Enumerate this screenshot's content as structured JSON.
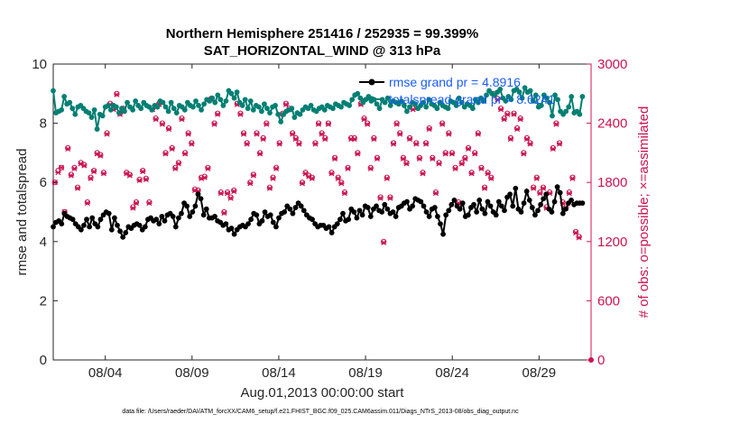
{
  "chart_data": {
    "type": "line",
    "title": "Northern Hemisphere 251416 / 252935 = 99.399%",
    "subtitle": "SAT_HORIZONTAL_WIND @ 313 hPa",
    "xlabel": "Aug.01,2013 00:00:00 start",
    "ylabel": "rmse and totalspread",
    "ylabel_right": "# of obs: o=possible; ×=assimilated",
    "x_tick_labels": [
      "08/04",
      "08/09",
      "08/14",
      "08/19",
      "08/24",
      "08/29"
    ],
    "x_tick_days": [
      4,
      9,
      14,
      19,
      24,
      29
    ],
    "xlim": [
      1,
      32
    ],
    "ylim": [
      0,
      10
    ],
    "yticks": [
      "0",
      "2",
      "4",
      "6",
      "8",
      "10"
    ],
    "ylim_right": [
      0,
      3000
    ],
    "yticks_right": [
      "0",
      "600",
      "1200",
      "1800",
      "2400",
      "3000"
    ],
    "grid": false,
    "legend_position": "top-right",
    "series": [
      {
        "name": "rmse grand pr = 4.8916",
        "color": "#000000",
        "axis": "left",
        "marker": "circle",
        "values": [
          4.5,
          4.65,
          4.7,
          4.6,
          4.95,
          4.85,
          4.8,
          4.75,
          4.6,
          4.5,
          4.4,
          4.55,
          4.75,
          4.5,
          4.8,
          4.6,
          4.5,
          4.75,
          4.9,
          5.0,
          4.95,
          4.4,
          4.8,
          4.55,
          4.35,
          4.15,
          4.3,
          4.5,
          4.45,
          4.55,
          4.6,
          4.55,
          4.4,
          4.5,
          4.75,
          4.8,
          4.7,
          4.75,
          4.6,
          4.85,
          4.7,
          4.9,
          4.95,
          4.85,
          4.5,
          4.8,
          4.95,
          5.3,
          5.2,
          4.85,
          5.0,
          5.2,
          5.6,
          5.45,
          4.9,
          5.1,
          4.8,
          4.8,
          4.85,
          4.7,
          4.65,
          4.55,
          4.6,
          4.4,
          4.45,
          4.25,
          4.4,
          4.5,
          4.55,
          4.5,
          4.6,
          4.75,
          4.95,
          4.9,
          4.6,
          4.7,
          5.0,
          4.85,
          4.9,
          4.65,
          4.5,
          4.8,
          4.95,
          5.0,
          5.2,
          5.1,
          4.95,
          5.15,
          5.3,
          5.2,
          5.05,
          4.9,
          4.8,
          4.75,
          4.6,
          4.5,
          4.55,
          4.55,
          4.45,
          4.5,
          4.3,
          4.5,
          4.6,
          4.75,
          4.95,
          4.7,
          4.75,
          5.1,
          5.0,
          4.8,
          5.05,
          4.9,
          5.2,
          5.15,
          4.85,
          5.1,
          5.2,
          5.05,
          5.0,
          5.25,
          5.1,
          4.95,
          5.0,
          4.85,
          5.15,
          5.2,
          5.3,
          5.35,
          5.1,
          5.2,
          5.45,
          5.4,
          5.35,
          5.2,
          5.0,
          4.85,
          5.1,
          5.15,
          4.85,
          4.6,
          4.25,
          4.9,
          5.05,
          5.25,
          5.4,
          5.2,
          5.1,
          5.3,
          4.85,
          4.9,
          5.15,
          5.25,
          5.0,
          5.4,
          5.1,
          4.95,
          5.35,
          5.2,
          5.0,
          4.9,
          5.35,
          5.2,
          5.05,
          5.5,
          5.6,
          5.2,
          5.8,
          5.1,
          5.0,
          5.3,
          5.7,
          5.4,
          5.15,
          4.9,
          5.05,
          5.25,
          5.45,
          5.6,
          5.1,
          5.0,
          5.35,
          5.85,
          5.65,
          4.95,
          5.1,
          5.3,
          5.4,
          5.25,
          5.3,
          5.3,
          5.3
        ]
      },
      {
        "name": "totalspread grand pr = 8.6241",
        "color": "#007f73",
        "axis": "left",
        "marker": "circle",
        "values": [
          9.1,
          8.35,
          8.4,
          8.45,
          8.9,
          8.65,
          8.7,
          8.5,
          8.3,
          8.55,
          8.6,
          8.5,
          8.4,
          8.35,
          8.2,
          8.45,
          7.8,
          8.3,
          8.25,
          8.55,
          8.6,
          8.45,
          8.6,
          8.55,
          8.35,
          8.5,
          8.4,
          8.7,
          8.55,
          8.45,
          8.75,
          8.6,
          8.5,
          8.7,
          8.6,
          8.55,
          8.45,
          8.6,
          8.55,
          8.75,
          8.7,
          8.55,
          8.4,
          8.7,
          8.5,
          8.35,
          8.6,
          8.55,
          8.45,
          8.7,
          8.6,
          8.55,
          8.75,
          8.6,
          8.45,
          8.65,
          8.8,
          8.75,
          8.85,
          8.7,
          8.95,
          8.8,
          8.6,
          8.75,
          9.1,
          9.0,
          8.85,
          9.05,
          8.7,
          8.6,
          8.8,
          8.5,
          8.75,
          8.45,
          8.6,
          8.55,
          8.4,
          8.65,
          8.5,
          8.35,
          8.55,
          8.6,
          8.3,
          8.05,
          8.3,
          8.4,
          8.45,
          8.5,
          8.2,
          8.35,
          8.3,
          8.45,
          8.55,
          8.5,
          8.6,
          8.45,
          8.4,
          8.5,
          8.55,
          8.45,
          8.6,
          8.55,
          8.5,
          8.65,
          8.6,
          8.55,
          8.7,
          8.65,
          8.6,
          8.8,
          8.95,
          9.0,
          8.85,
          8.7,
          8.8,
          8.9,
          8.75,
          8.8,
          8.65,
          8.5,
          8.8,
          8.7,
          8.85,
          8.6,
          8.75,
          8.7,
          8.65,
          8.75,
          8.6,
          8.4,
          8.55,
          8.7,
          8.65,
          8.5,
          8.6,
          8.7,
          8.55,
          8.8,
          8.65,
          8.6,
          8.5,
          8.7,
          8.6,
          8.55,
          8.5,
          8.75,
          8.7,
          8.6,
          8.85,
          8.7,
          8.55,
          8.65,
          8.6,
          8.5,
          8.8,
          8.7,
          8.85,
          8.75,
          8.95,
          9.1,
          9.0,
          8.95,
          9.05,
          9.15,
          8.85,
          8.75,
          8.9,
          8.8,
          9.1,
          9.15,
          9.05,
          8.85,
          9.2,
          9.05,
          9.1,
          8.75,
          8.95,
          8.55,
          8.6,
          8.95,
          8.85,
          8.7,
          8.25,
          8.95,
          8.8,
          8.4,
          8.3,
          8.4,
          8.55,
          8.9,
          8.35,
          8.4,
          8.3,
          8.9
        ]
      },
      {
        "name": "possible",
        "color": "#cc1450",
        "axis": "right",
        "marker": "o",
        "values": [
          1800,
          1920,
          1950,
          1500,
          2150,
          1880,
          1950,
          1750,
          2000,
          1980,
          1600,
          1850,
          1920,
          2100,
          2080,
          1900,
          2300,
          2600,
          2550,
          2700,
          2500,
          2550,
          1900,
          1880,
          1550,
          1600,
          1830,
          1920,
          1840,
          1600,
          2550,
          2450,
          2600,
          2400,
          2100,
          2350,
          2150,
          1950,
          2000,
          2450,
          2100,
          2300,
          2200,
          1730,
          1720,
          1850,
          1860,
          1950,
          2650,
          2400,
          2500,
          1700,
          1500,
          1700,
          1650,
          1720,
          2600,
          2500,
          2300,
          2200,
          1800,
          1880,
          2300,
          2100,
          2250,
          2400,
          1750,
          1850,
          1950,
          2200,
          2500,
          2600,
          2550,
          2300,
          2250,
          2200,
          1800,
          1900,
          1870,
          1850,
          2200,
          2400,
          2300,
          2250,
          2400,
          1900,
          2050,
          1850,
          1800,
          1700,
          1950,
          2250,
          2250,
          2100,
          2600,
          2450,
          2400,
          1950,
          2250,
          2050,
          1650,
          1200,
          1850,
          1650,
          2200,
          2400,
          2300,
          2050,
          2000,
          2250,
          2550,
          2200,
          2050,
          1900,
          2200,
          2350,
          2050,
          1700,
          2000,
          2400,
          2100,
          2300,
          2100,
          1950,
          1600,
          2000,
          2050,
          2150,
          1900,
          2100,
          2300,
          1950,
          1750,
          1900,
          1850,
          2700,
          2650,
          2550,
          2450,
          2500,
          2250,
          2500,
          2350,
          2450,
          2100,
          2250,
          2200,
          1750,
          1850,
          1700,
          1750,
          1550,
          1700,
          2150,
          2400,
          2200,
          1600,
          1550,
          1700,
          1850,
          1300,
          1250
        ]
      },
      {
        "name": "assimilated",
        "color": "#cc1450",
        "axis": "right",
        "marker": "x",
        "values": [
          1800,
          1900,
          1950,
          1500,
          2140,
          1870,
          1940,
          1740,
          1990,
          1970,
          1590,
          1840,
          1910,
          2090,
          2070,
          1890,
          2290,
          2590,
          2540,
          2690,
          2490,
          2540,
          1890,
          1870,
          1540,
          1590,
          1820,
          1910,
          1830,
          1590,
          2540,
          2440,
          2590,
          2390,
          2090,
          2340,
          2140,
          1940,
          1990,
          2440,
          2090,
          2290,
          2190,
          1720,
          1710,
          1840,
          1850,
          1940,
          2640,
          2390,
          2490,
          1690,
          1490,
          1690,
          1640,
          1710,
          2590,
          2490,
          2290,
          2190,
          1790,
          1870,
          2290,
          2090,
          2240,
          2390,
          1740,
          1840,
          1940,
          2190,
          2490,
          2590,
          2540,
          2290,
          2240,
          2190,
          1790,
          1890,
          1860,
          1840,
          2190,
          2390,
          2290,
          2240,
          2390,
          1890,
          2040,
          1840,
          1790,
          1690,
          1940,
          2240,
          2240,
          2090,
          2590,
          2440,
          2390,
          1940,
          2240,
          2040,
          1640,
          1190,
          1840,
          1640,
          2190,
          2390,
          2290,
          2040,
          1990,
          2240,
          2540,
          2190,
          2040,
          1890,
          2190,
          2340,
          2040,
          1690,
          1990,
          2390,
          2090,
          2290,
          2090,
          1940,
          1590,
          1990,
          2040,
          2140,
          1890,
          2090,
          2290,
          1940,
          1740,
          1890,
          1840,
          2690,
          2640,
          2540,
          2440,
          2490,
          2240,
          2490,
          2340,
          2440,
          2090,
          2240,
          2190,
          1740,
          1840,
          1690,
          1740,
          1540,
          1690,
          2140,
          2390,
          2190,
          1590,
          1540,
          1690,
          1840,
          1290,
          1240
        ]
      }
    ],
    "footer": "data file: /Users/raeder/DAI/ATM_forcXX/CAM6_setup/f.e21.FHIST_BGC.f09_025.CAM6assim.011/Diags_NTrS_2013-08/obs_diag_output.nc"
  }
}
